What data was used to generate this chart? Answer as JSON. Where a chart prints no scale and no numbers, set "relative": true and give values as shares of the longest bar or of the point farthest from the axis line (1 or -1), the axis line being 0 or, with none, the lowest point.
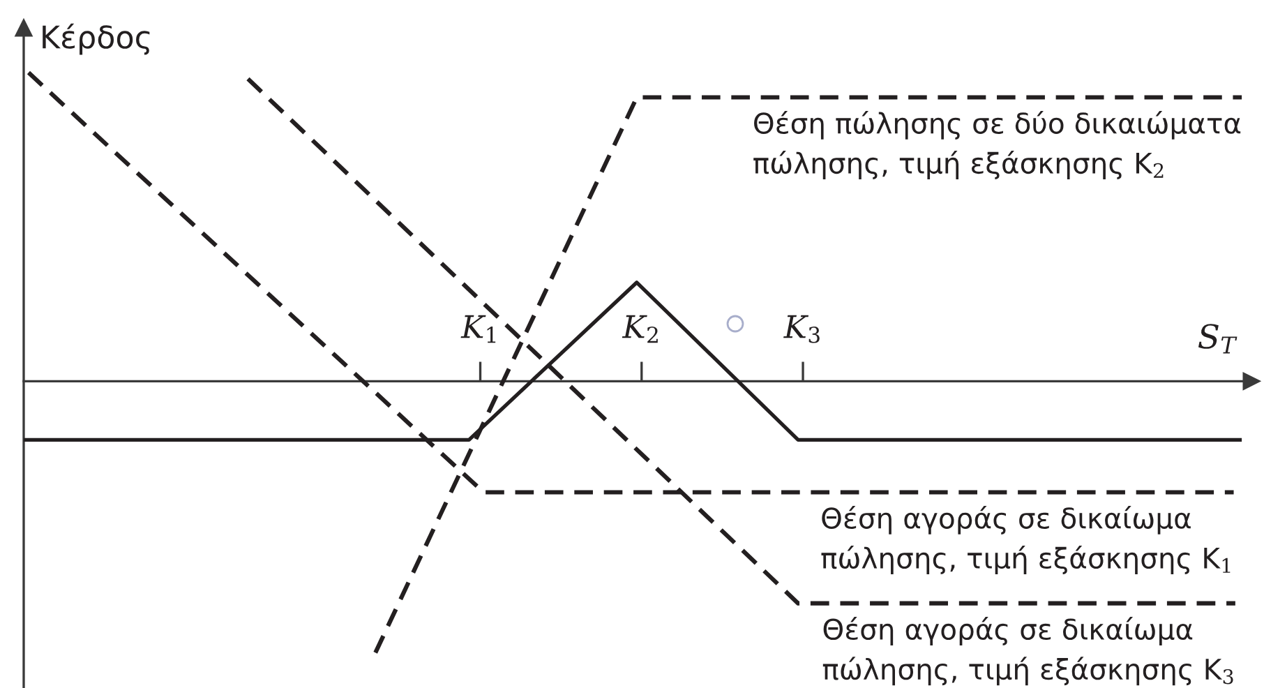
{
  "chart_data": {
    "type": "line",
    "relative": true,
    "ylabel": "Κέρδος",
    "xlabel": "S$_{T}$",
    "tick_labels": "x",
    "xlim": [
      -1.83,
      5.78
    ],
    "xticks": [
      {
        "value": 1,
        "label": "K$_{1}$"
      },
      {
        "value": 2,
        "label": "K$_{2}$"
      },
      {
        "value": 3,
        "label": "K$_{3}$"
      }
    ],
    "series": [
      {
        "color": "#231f20",
        "line_style": "solid",
        "x": [
          -1.83,
          0.93,
          1.97,
          2.97,
          5.72
        ],
        "values": [
          -0.19,
          -0.19,
          0.32,
          -0.19,
          -0.19
        ]
      },
      {
        "name": "Θέση πώλησης σε δύο δικαιώματα\nπώλησης, τιμή εξάσκησης K$_{2}$",
        "color": "#231f20",
        "line_style": "dashed",
        "x": [
          0.35,
          1.97,
          5.72
        ],
        "values": [
          -0.88,
          0.92,
          0.92
        ]
      },
      {
        "name": "Θέση αγοράς σε δικαίωμα\nπώλησης, τιμή εξάσκησης K$_{1}$",
        "color": "#231f20",
        "line_style": "dashed",
        "x": [
          -1.8,
          1.02,
          5.67
        ],
        "values": [
          1,
          -0.36,
          -0.36
        ]
      },
      {
        "name": "Θέση αγοράς σε δικαίωμα\nπώλησης, τιμή εξάσκησης K$_{3}$",
        "color": "#231f20",
        "line_style": "dashed",
        "x": [
          -0.44,
          2.97,
          5.68
        ],
        "values": [
          0.98,
          -0.72,
          -0.72
        ]
      }
    ]
  }
}
